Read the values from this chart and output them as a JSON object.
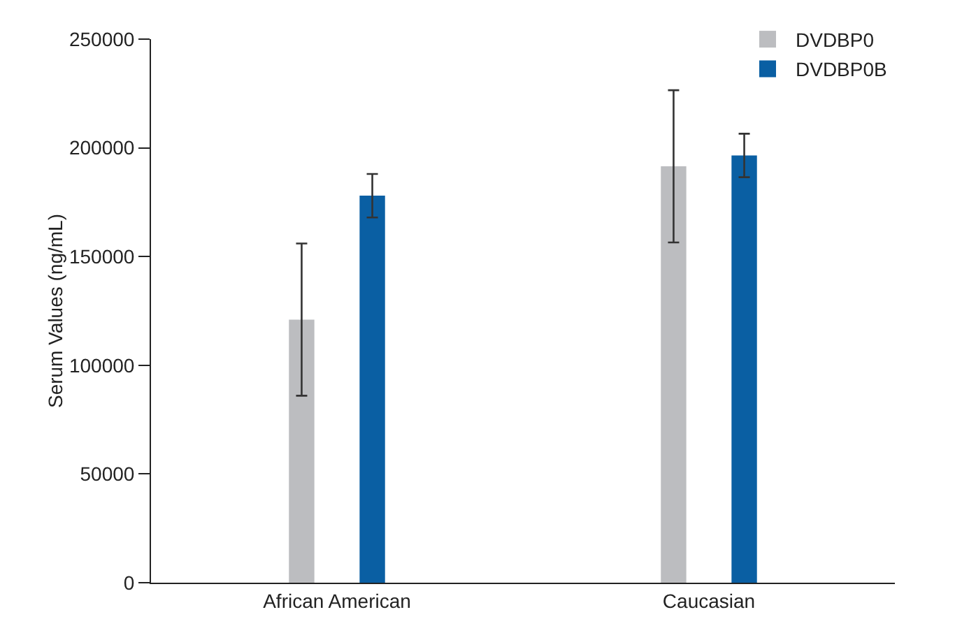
{
  "chart_data": {
    "type": "bar",
    "ylabel": "Serum Values (ng/mL)",
    "categories": [
      "African American",
      "Caucasian"
    ],
    "series": [
      {
        "name": "DVDBP0",
        "color": "#bcbdc0",
        "values": [
          121000,
          191500
        ],
        "errors": [
          35000,
          35000
        ]
      },
      {
        "name": "DVDBP0B",
        "color": "#0a5fa3",
        "values": [
          178000,
          196500
        ],
        "errors": [
          10000,
          10000
        ]
      }
    ],
    "ylim": [
      0,
      250000
    ],
    "yticks": [
      0,
      50000,
      100000,
      150000,
      200000,
      250000
    ],
    "grid": false,
    "legend": "top right"
  }
}
